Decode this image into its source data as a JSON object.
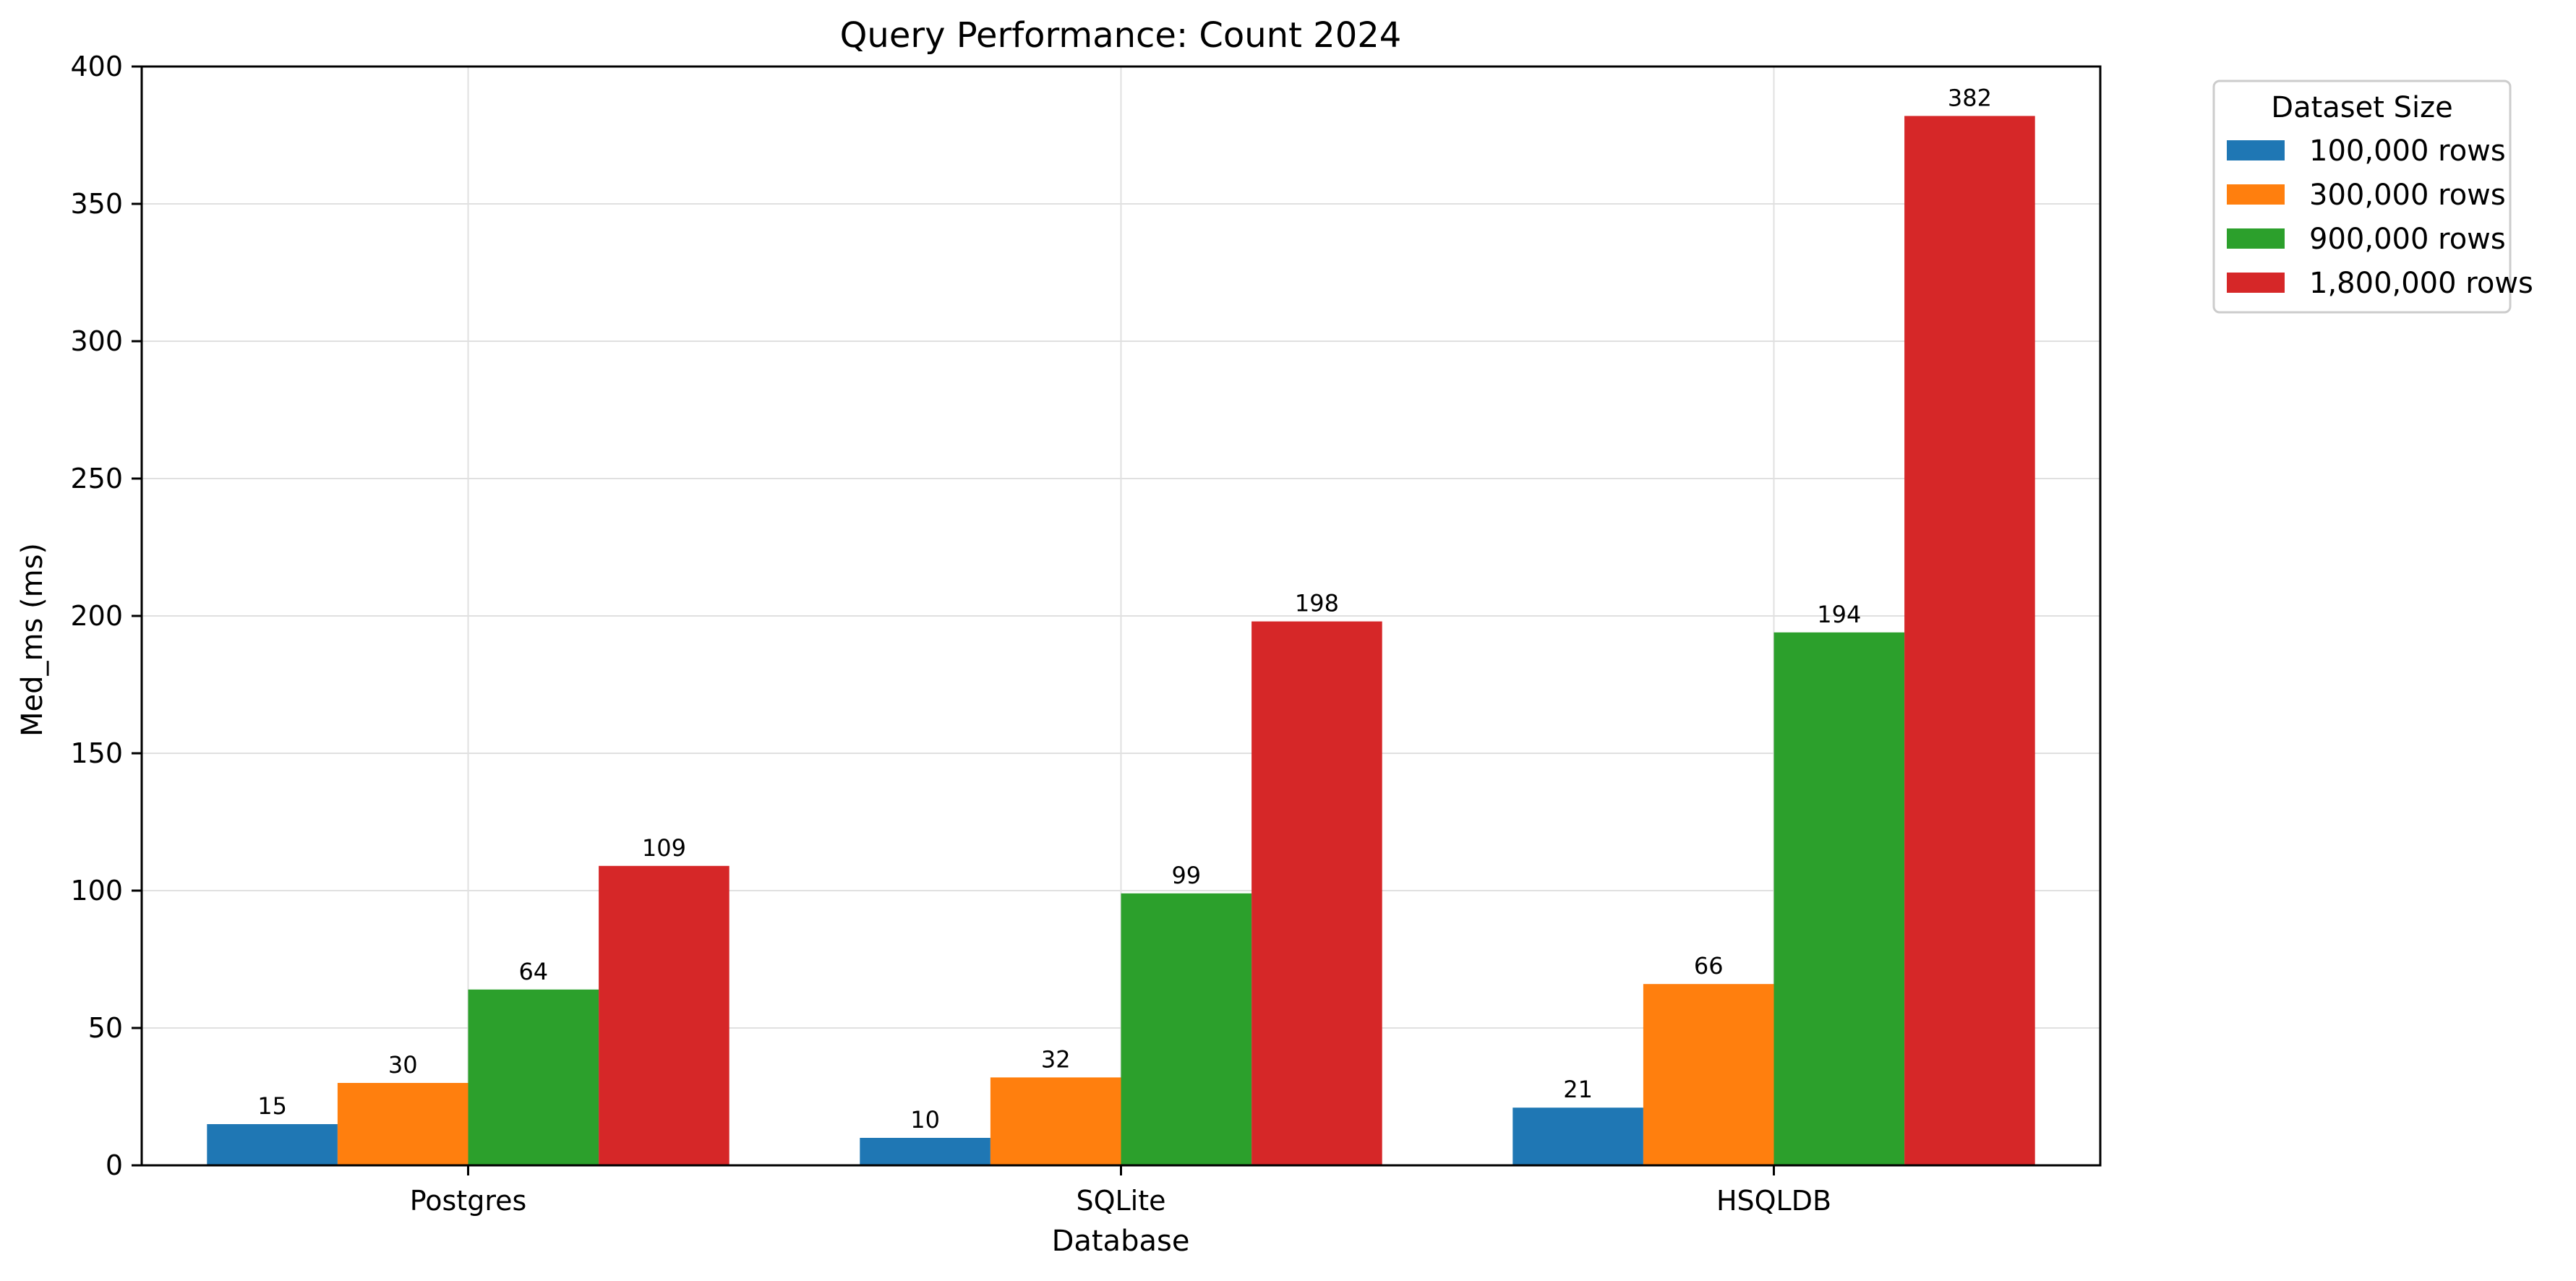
{
  "chart_data": {
    "type": "bar",
    "title": "Query Performance: Count 2024",
    "xlabel": "Database",
    "ylabel": "Med_ms (ms)",
    "categories": [
      "Postgres",
      "SQLite",
      "HSQLDB"
    ],
    "series": [
      {
        "name": "100,000 rows",
        "color": "#1f77b4",
        "values": [
          15,
          10,
          21
        ]
      },
      {
        "name": "300,000 rows",
        "color": "#ff7f0e",
        "values": [
          30,
          32,
          66
        ]
      },
      {
        "name": "900,000 rows",
        "color": "#2ca02c",
        "values": [
          64,
          99,
          194
        ]
      },
      {
        "name": "1,800,000 rows",
        "color": "#d62728",
        "values": [
          109,
          198,
          382
        ]
      }
    ],
    "value_labels": [
      [
        "15",
        "10",
        "21"
      ],
      [
        "30",
        "32",
        "66"
      ],
      [
        "64",
        "99",
        "194"
      ],
      [
        "109",
        "198",
        "382"
      ]
    ],
    "ylim": [
      0,
      400
    ],
    "yticks": [
      0,
      50,
      100,
      150,
      200,
      250,
      300,
      350,
      400
    ],
    "ytick_labels": [
      "0",
      "50",
      "100",
      "150",
      "200",
      "250",
      "300",
      "350",
      "400"
    ],
    "grid": true,
    "legend": {
      "title": "Dataset Size",
      "placement": "outside-top-right"
    }
  }
}
